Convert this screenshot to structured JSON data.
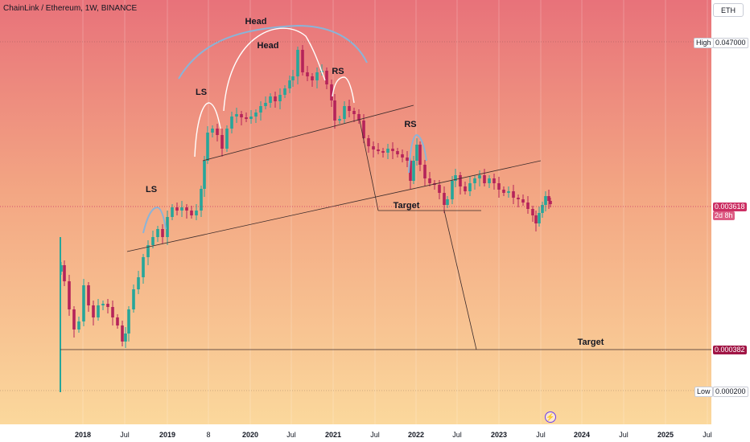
{
  "chart_title": "ChainLink / Ethereum, 1W, BINANCE",
  "currency_button": "ETH",
  "price_labels": {
    "high_tag": "High",
    "high_value": "0.047000",
    "last_value": "0.003618",
    "countdown": "2d 8h",
    "target_value": "0.000382",
    "low_tag": "Low",
    "low_value": "0.000200"
  },
  "time_axis": [
    {
      "label": "2018",
      "year": true
    },
    {
      "label": "Jul",
      "year": false
    },
    {
      "label": "2019",
      "year": true
    },
    {
      "label": "8",
      "year": false
    },
    {
      "label": "2020",
      "year": true
    },
    {
      "label": "Jul",
      "year": false
    },
    {
      "label": "2021",
      "year": true
    },
    {
      "label": "Jul",
      "year": false
    },
    {
      "label": "2022",
      "year": true
    },
    {
      "label": "Jul",
      "year": false
    },
    {
      "label": "2023",
      "year": true
    },
    {
      "label": "Jul",
      "year": false
    },
    {
      "label": "2024",
      "year": true
    },
    {
      "label": "Jul",
      "year": false
    },
    {
      "label": "2025",
      "year": true
    },
    {
      "label": "Jul",
      "year": false
    }
  ],
  "annotations": [
    {
      "text": "Head"
    },
    {
      "text": "Head"
    },
    {
      "text": "LS"
    },
    {
      "text": "RS"
    },
    {
      "text": "LS"
    },
    {
      "text": "RS"
    },
    {
      "text": "Target"
    },
    {
      "text": "Target"
    }
  ],
  "colors": {
    "bg_top": "#e8727a",
    "bg_bottom": "#fbd79a",
    "candle_up": "#26a69a",
    "candle_down": "#b5235a",
    "pattern_arc": "#ffffff",
    "pattern_arc_alt": "#8ab4d8",
    "last_price": "#cc2f63",
    "target_price": "#a11545"
  },
  "icons": {
    "flash": "lightning-icon"
  }
}
